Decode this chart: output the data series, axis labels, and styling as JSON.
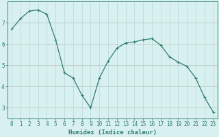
{
  "xlabel": "Humidex (Indice chaleur)",
  "x": [
    0,
    1,
    2,
    3,
    4,
    5,
    6,
    7,
    8,
    9,
    10,
    11,
    12,
    13,
    14,
    15,
    16,
    17,
    18,
    19,
    20,
    21,
    22,
    23
  ],
  "y": [
    6.7,
    7.2,
    7.55,
    7.6,
    7.4,
    6.2,
    4.65,
    4.4,
    3.6,
    3.0,
    4.4,
    5.2,
    5.8,
    6.05,
    6.1,
    6.2,
    6.25,
    5.95,
    5.4,
    5.15,
    4.95,
    4.4,
    3.5,
    2.8
  ],
  "line_color": "#2e7d6e",
  "marker": "+",
  "marker_size": 3,
  "marker_linewidth": 0.8,
  "linewidth": 0.9,
  "bg_color": "#d8f0ef",
  "grid_color": "#b8d8d4",
  "ylim": [
    2.5,
    8.0
  ],
  "xlim": [
    -0.5,
    23.5
  ],
  "yticks": [
    3,
    4,
    5,
    6,
    7
  ],
  "xticks": [
    0,
    1,
    2,
    3,
    4,
    5,
    6,
    7,
    8,
    9,
    10,
    11,
    12,
    13,
    14,
    15,
    16,
    17,
    18,
    19,
    20,
    21,
    22,
    23
  ],
  "tick_label_fontsize": 5.5,
  "xlabel_fontsize": 6.5,
  "axis_color": "#2e7d6e",
  "spine_color": "#3a8878"
}
